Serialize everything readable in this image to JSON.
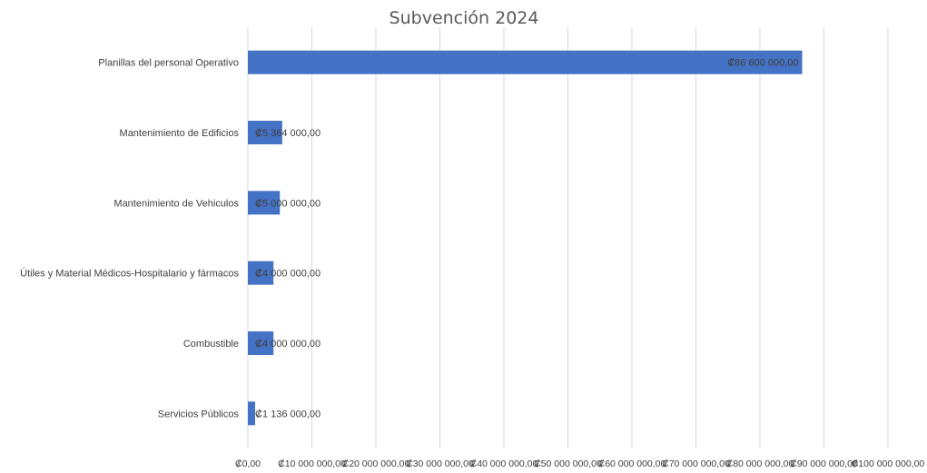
{
  "chart_data": {
    "type": "bar",
    "orientation": "horizontal",
    "title": "Subvención 2024",
    "xlabel": "",
    "ylabel": "",
    "categories": [
      "Planillas del personal Operativo",
      "Mantenimiento de Edificios",
      "Mantenimiento de Vehiculos",
      "Útiles y Material Médicos-Hospitalario y fármacos",
      "Combustible",
      "Servicios Públicos"
    ],
    "values": [
      86600000,
      5364000,
      5000000,
      4000000,
      4000000,
      1136000
    ],
    "data_labels": [
      "₡86 600 000,00",
      "₡5 364 000,00",
      "₡5 000 000,00",
      "₡4 000 000,00",
      "₡4 000 000,00",
      "₡1 136 000,00"
    ],
    "xlim": [
      0,
      100000000
    ],
    "x_ticks": [
      0,
      10000000,
      20000000,
      30000000,
      40000000,
      50000000,
      60000000,
      70000000,
      80000000,
      90000000,
      100000000
    ],
    "x_tick_labels": [
      "₡0,00",
      "₡10 000 000,00",
      "₡20 000 000,00",
      "₡30 000 000,00",
      "₡40 000 000,00",
      "₡50 000 000,00",
      "₡60 000 000,00",
      "₡70 000 000,00",
      "₡80 000 000,00",
      "₡90 000 000,00",
      "₡100 000 000,00"
    ],
    "grid": "vertical",
    "legend": "none",
    "bar_color": "#4472c4"
  }
}
